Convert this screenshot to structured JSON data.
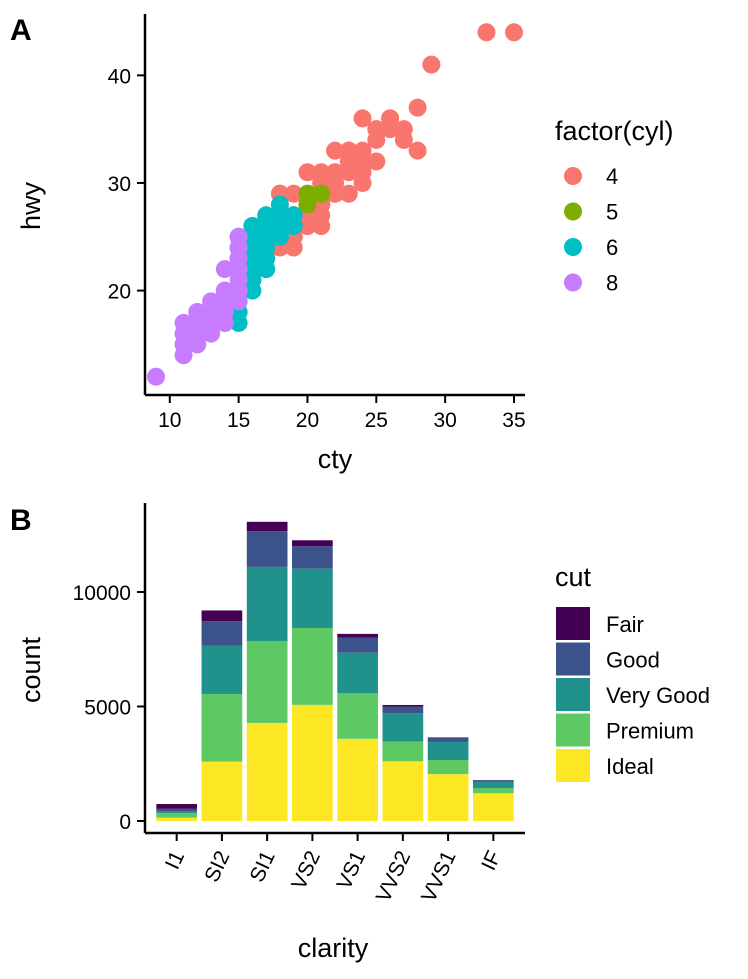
{
  "figure": {
    "panel_a": {
      "tag": "A"
    },
    "panel_b": {
      "tag": "B"
    }
  },
  "chart_data": [
    {
      "type": "scatter",
      "xlabel": "cty",
      "ylabel": "hwy",
      "xlim": [
        8.2,
        35.8
      ],
      "ylim": [
        10.3,
        45.7
      ],
      "x_ticks": [
        10,
        15,
        20,
        25,
        30,
        35
      ],
      "y_ticks": [
        20,
        30,
        40
      ],
      "grid": false,
      "legend": {
        "title": "factor(cyl)",
        "position": "right"
      },
      "series": [
        {
          "name": "4",
          "color": "#F8766D",
          "points": [
            [
              18,
              29
            ],
            [
              21,
              29
            ],
            [
              20,
              31
            ],
            [
              21,
              30
            ],
            [
              18,
              26
            ],
            [
              19,
              26
            ],
            [
              22,
              29
            ],
            [
              21,
              29
            ],
            [
              20,
              28
            ],
            [
              19,
              27
            ],
            [
              21,
              30
            ],
            [
              18,
              29
            ],
            [
              17,
              26
            ],
            [
              19,
              27
            ],
            [
              21,
              28
            ],
            [
              22,
              33
            ],
            [
              22,
              31
            ],
            [
              24,
              32
            ],
            [
              24,
              33
            ],
            [
              23,
              33
            ],
            [
              21,
              31
            ],
            [
              24,
              30
            ],
            [
              23,
              29
            ],
            [
              20,
              29
            ],
            [
              26,
              35
            ],
            [
              28,
              37
            ],
            [
              26,
              36
            ],
            [
              24,
              36
            ],
            [
              25,
              32
            ],
            [
              26,
              36
            ],
            [
              33,
              44
            ],
            [
              35,
              44
            ],
            [
              29,
              41
            ],
            [
              25,
              34
            ],
            [
              23,
              33
            ],
            [
              28,
              33
            ],
            [
              27,
              35
            ],
            [
              27,
              34
            ],
            [
              25,
              35
            ],
            [
              21,
              26
            ],
            [
              19,
              24
            ],
            [
              22,
              30
            ],
            [
              20,
              28
            ],
            [
              19,
              25
            ],
            [
              17,
              22
            ],
            [
              16,
              22
            ],
            [
              18,
              24
            ],
            [
              23,
              32
            ],
            [
              22,
              30
            ],
            [
              20,
              27
            ],
            [
              21,
              27
            ],
            [
              19,
              25
            ],
            [
              21,
              28
            ],
            [
              17,
              23
            ],
            [
              16,
              21
            ],
            [
              15,
              20
            ],
            [
              16,
              23
            ],
            [
              18,
              27
            ],
            [
              20,
              26
            ],
            [
              22,
              29
            ],
            [
              24,
              31
            ],
            [
              19,
              29
            ],
            [
              23,
              31
            ],
            [
              21,
              28
            ],
            [
              20,
              26
            ]
          ]
        },
        {
          "name": "5",
          "color": "#7CAE00",
          "points": [
            [
              21,
              29
            ],
            [
              20,
              28
            ],
            [
              20,
              29
            ],
            [
              21,
              29
            ]
          ]
        },
        {
          "name": "6",
          "color": "#00BFC4",
          "points": [
            [
              16,
              26
            ],
            [
              17,
              27
            ],
            [
              18,
              27
            ],
            [
              16,
              25
            ],
            [
              15,
              25
            ],
            [
              17,
              26
            ],
            [
              18,
              26
            ],
            [
              16,
              23
            ],
            [
              15,
              22
            ],
            [
              16,
              20
            ],
            [
              14,
              20
            ],
            [
              15,
              19
            ],
            [
              15,
              17
            ],
            [
              16,
              24
            ],
            [
              17,
              24
            ],
            [
              18,
              28
            ],
            [
              16,
              22
            ],
            [
              17,
              22
            ],
            [
              19,
              26
            ],
            [
              15,
              18
            ],
            [
              14,
              17
            ],
            [
              16,
              21
            ],
            [
              17,
              25
            ],
            [
              18,
              25
            ],
            [
              19,
              27
            ],
            [
              15,
              23
            ],
            [
              16,
              26
            ],
            [
              17,
              23
            ],
            [
              18,
              27
            ],
            [
              15,
              24
            ]
          ]
        },
        {
          "name": "8",
          "color": "#C77CFF",
          "points": [
            [
              15,
              25
            ],
            [
              15,
              24
            ],
            [
              15,
              23
            ],
            [
              14,
              22
            ],
            [
              15,
              21
            ],
            [
              15,
              20
            ],
            [
              14,
              20
            ],
            [
              15,
              19
            ],
            [
              14,
              19
            ],
            [
              13,
              19
            ],
            [
              13,
              18
            ],
            [
              12,
              18
            ],
            [
              13,
              17
            ],
            [
              12,
              17
            ],
            [
              11,
              17
            ],
            [
              11,
              16
            ],
            [
              12,
              16
            ],
            [
              11,
              15
            ],
            [
              12,
              15
            ],
            [
              11,
              14
            ],
            [
              9,
              12
            ],
            [
              13,
              16
            ],
            [
              14,
              17
            ],
            [
              12,
              18
            ],
            [
              14,
              18
            ],
            [
              15,
              22
            ],
            [
              15,
              20
            ],
            [
              13,
              18
            ],
            [
              15,
              24
            ]
          ]
        }
      ]
    },
    {
      "type": "bar",
      "stacked": true,
      "xlabel": "clarity",
      "ylabel": "count",
      "ylim": [
        0,
        13700
      ],
      "y_ticks": [
        0,
        5000,
        10000
      ],
      "grid": false,
      "categories": [
        "I1",
        "SI2",
        "SI1",
        "VS2",
        "VS1",
        "VVS2",
        "VVS1",
        "IF"
      ],
      "legend": {
        "title": "cut",
        "position": "right"
      },
      "series": [
        {
          "name": "Ideal",
          "color": "#FDE725",
          "values": [
            146,
            2598,
            4282,
            5071,
            3589,
            2606,
            2047,
            1212
          ]
        },
        {
          "name": "Premium",
          "color": "#5EC962",
          "values": [
            205,
            2949,
            3575,
            3357,
            1989,
            870,
            616,
            230
          ]
        },
        {
          "name": "Very Good",
          "color": "#21918C",
          "values": [
            84,
            2100,
            3240,
            2591,
            1775,
            1235,
            789,
            268
          ]
        },
        {
          "name": "Good",
          "color": "#3B528B",
          "values": [
            96,
            1081,
            1560,
            978,
            648,
            286,
            186,
            71
          ]
        },
        {
          "name": "Fair",
          "color": "#440154",
          "values": [
            210,
            466,
            408,
            261,
            170,
            69,
            17,
            9
          ]
        }
      ]
    }
  ]
}
